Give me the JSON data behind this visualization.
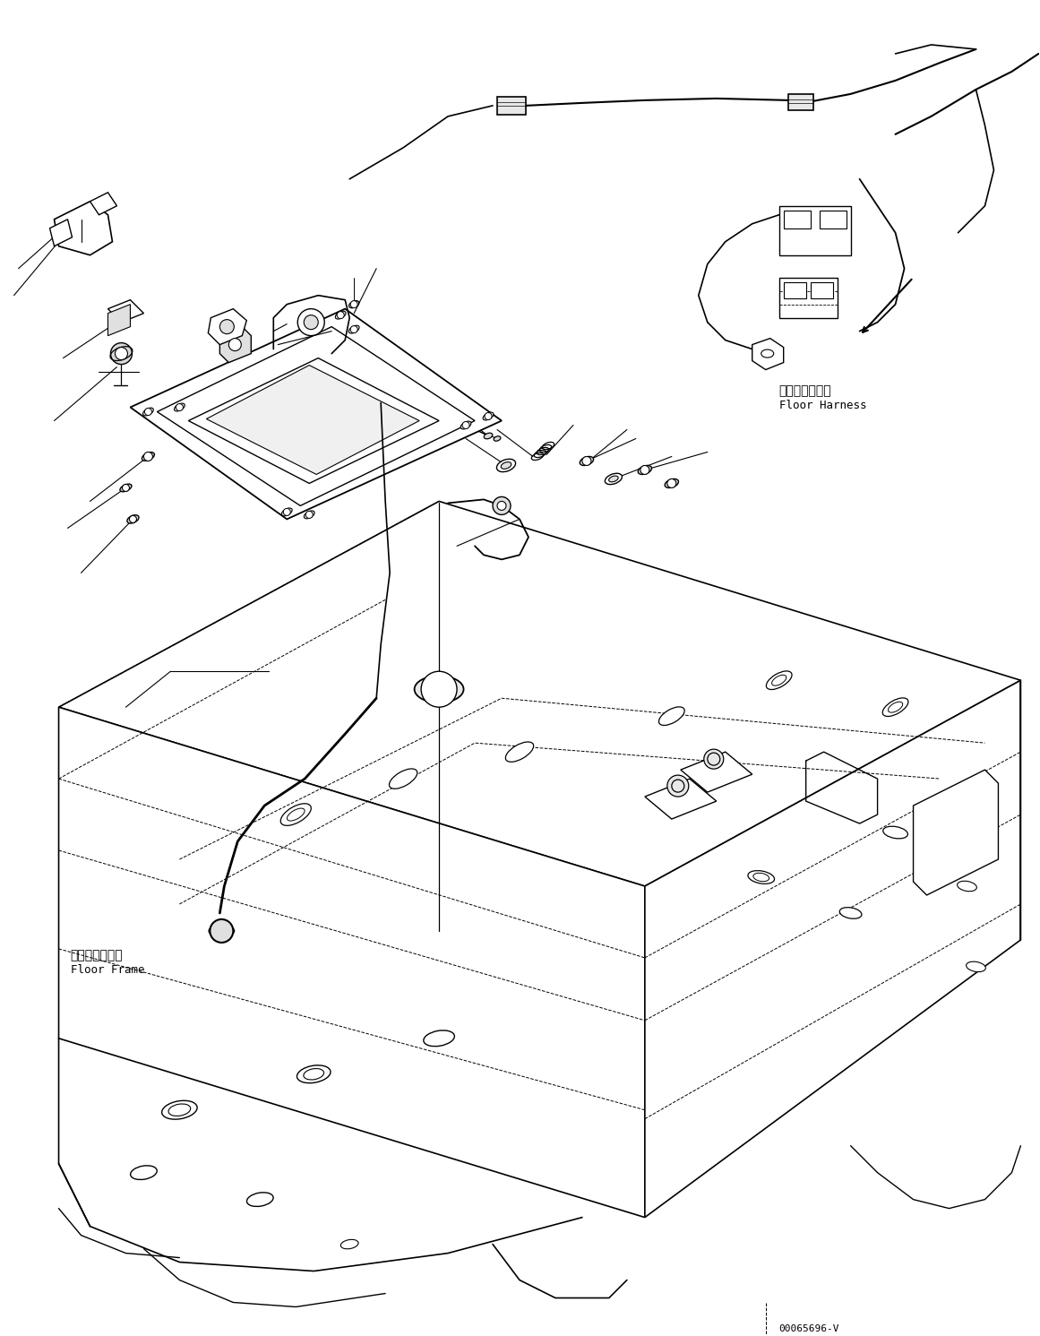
{
  "bg_color": "#ffffff",
  "line_color": "#000000",
  "fig_width": 11.61,
  "fig_height": 14.91,
  "dpi": 100,
  "label_floor_harness_jp": "フロアハーネス",
  "label_floor_harness_en": "Floor Harness",
  "label_floor_frame_jp": "フロアフレーム",
  "label_floor_frame_en": "Floor Frame",
  "part_number": "00065696-V"
}
